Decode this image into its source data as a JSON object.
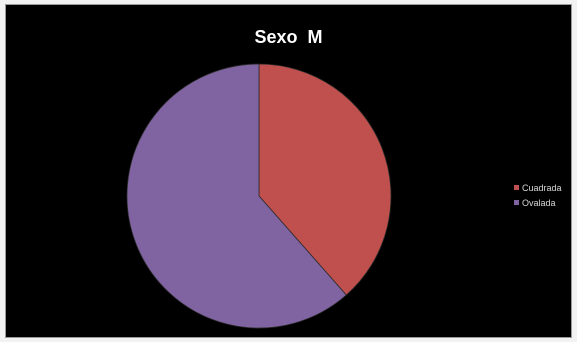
{
  "chart_data": {
    "type": "pie",
    "title": "Sexo  M",
    "slices": [
      {
        "label": "Cuadrada",
        "value": 38.5,
        "color": "#c0504d"
      },
      {
        "label": "Ovalada",
        "value": 61.5,
        "color": "#8064a2"
      }
    ],
    "legend_position": "right",
    "background": "#000000"
  }
}
